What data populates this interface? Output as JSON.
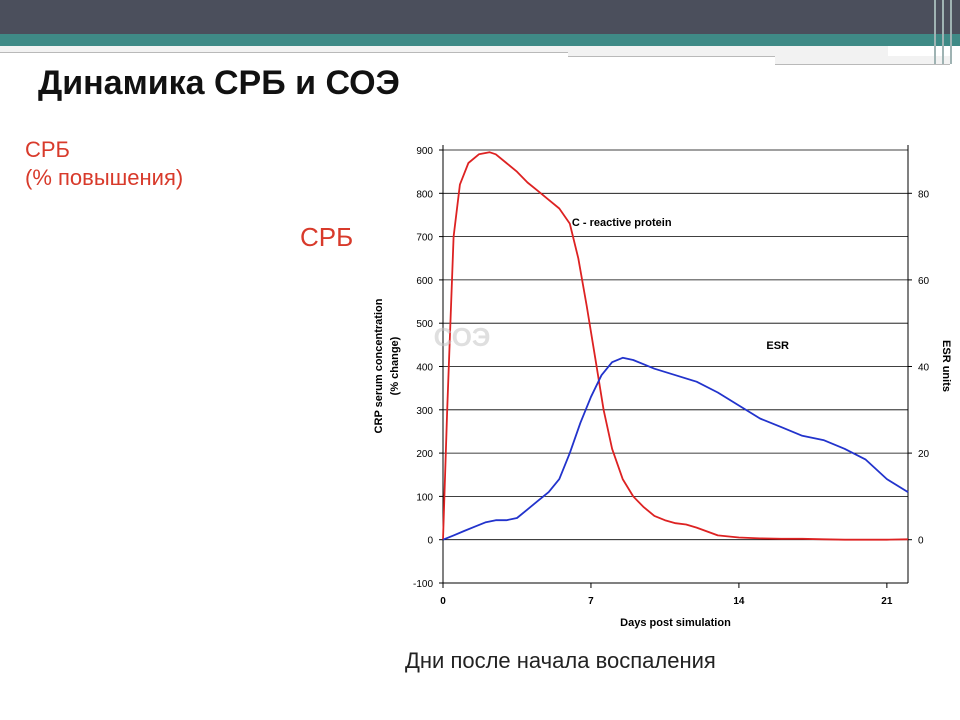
{
  "slide": {
    "title": "Динамика СРБ и СОЭ",
    "crp_heading_line1": "СРБ",
    "crp_heading_line2": "(% повышения)",
    "crp_label": "СРБ",
    "esr_label": "СОЭ",
    "caption": "Дни после начала воспаления"
  },
  "colors": {
    "crp": "#dd2222",
    "esr": "#2233cc",
    "header": "#4b4f5c",
    "accent": "#3f8a86",
    "red_text": "#d83a2b"
  },
  "chart_data": {
    "type": "line",
    "xlabel": "Days post simulation",
    "ylabel": "CRP serum concentration",
    "ylabel2": "(% change)",
    "y2label": "ESR units",
    "xlim": [
      0,
      22
    ],
    "ylim": [
      -100,
      900
    ],
    "y2lim": [
      -10,
      90
    ],
    "grid": true,
    "x_ticks": [
      "0",
      "7",
      "14",
      "21"
    ],
    "y_ticks": [
      "900",
      "800",
      "700",
      "600",
      "500",
      "400",
      "300",
      "200",
      "100",
      "0",
      "-100"
    ],
    "y2_ticks": [
      "80",
      "60",
      "40",
      "20",
      "0"
    ],
    "annotations": [
      {
        "text": "C - reactive protein",
        "x": 6.1,
        "y": 725
      },
      {
        "text": "ESR",
        "x": 15.3,
        "y": 440
      }
    ],
    "series": [
      {
        "name": "C - reactive protein",
        "axis": "left",
        "x": [
          0,
          0.2,
          0.5,
          0.8,
          1.2,
          1.7,
          2.2,
          2.5,
          3,
          3.5,
          4,
          4.5,
          5,
          5.5,
          6,
          6.4,
          6.8,
          7.2,
          7.6,
          8,
          8.5,
          9,
          9.5,
          10,
          10.5,
          11,
          11.5,
          12,
          13,
          14,
          15,
          16,
          17,
          18,
          19,
          20,
          21,
          22
        ],
        "values": [
          0,
          300,
          700,
          820,
          870,
          890,
          895,
          890,
          870,
          850,
          825,
          805,
          785,
          765,
          730,
          650,
          540,
          420,
          300,
          210,
          140,
          100,
          75,
          55,
          45,
          38,
          35,
          28,
          10,
          5,
          3,
          2,
          2,
          1,
          0,
          0,
          0,
          1
        ]
      },
      {
        "name": "ESR",
        "axis": "right",
        "x": [
          0,
          0.5,
          1,
          1.5,
          2,
          2.5,
          3,
          3.5,
          4,
          4.5,
          5,
          5.5,
          6,
          6.5,
          7,
          7.5,
          8,
          8.5,
          9,
          9.5,
          10,
          11,
          12,
          13,
          14,
          15,
          16,
          17,
          18,
          19,
          20,
          21,
          22
        ],
        "values": [
          0,
          1,
          2,
          3,
          4,
          4.5,
          4.5,
          5,
          7,
          9,
          11,
          14,
          20,
          27,
          33,
          38,
          41,
          42,
          41.5,
          40.5,
          39.5,
          38,
          36.5,
          34,
          31,
          28,
          26,
          24,
          23,
          21,
          18.5,
          14,
          11
        ]
      }
    ]
  }
}
